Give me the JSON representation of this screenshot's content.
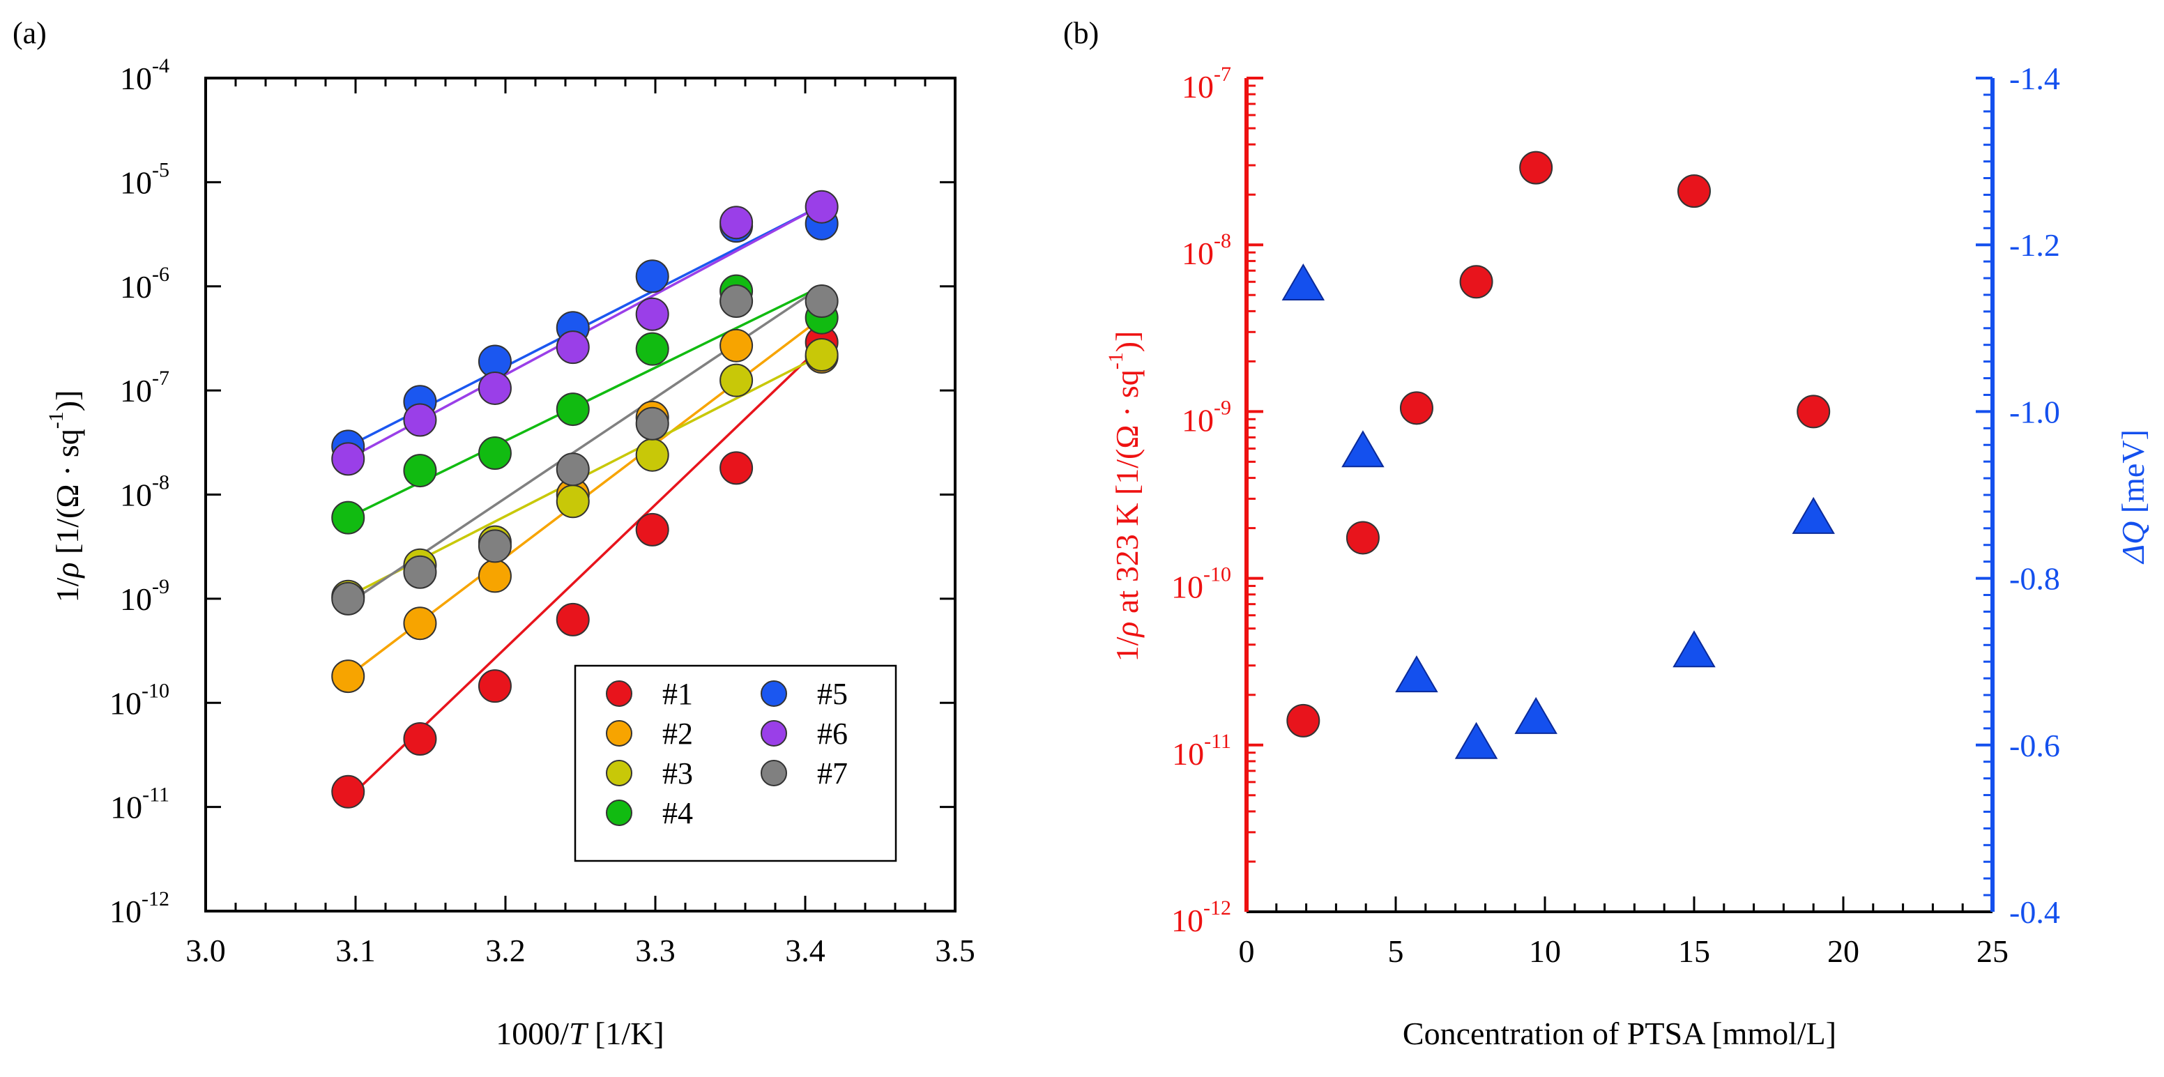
{
  "chart_data": [
    {
      "type": "scatter",
      "panel_label": "(a)",
      "title": "",
      "xlabel": "1000/T [1/K]",
      "xlabel_prefix": "1000/",
      "xlabel_var": "T",
      "xlabel_suffix": " [1/K]",
      "ylabel": "1/ρ [1/(Ω · sq^-1)]",
      "ylabel_parts": {
        "prefix": "1/",
        "var": "ρ",
        "unit": " [1/(Ω · sq",
        "exp": "-1",
        "close": ")]"
      },
      "xlim": [
        3.0,
        3.5
      ],
      "ylim_log10": [
        -12,
        -4
      ],
      "yscale": "log",
      "x_ticks": [
        "3.0",
        "3.1",
        "3.2",
        "3.3",
        "3.4",
        "3.5"
      ],
      "y_tick_exponents": [
        "-12",
        "-11",
        "-10",
        "-9",
        "-8",
        "-7",
        "-6",
        "-5",
        "-4"
      ],
      "y_tick_base": "10",
      "legend_position": "bottom-right",
      "x": [
        3.095,
        3.143,
        3.193,
        3.245,
        3.298,
        3.354,
        3.411
      ],
      "series": [
        {
          "name": "#1",
          "color": "#e8141c",
          "values": [
            1.4e-11,
            4.5e-11,
            1.45e-10,
            6.3e-10,
            4.6e-09,
            1.8e-08,
            2.9e-07
          ],
          "fit": [
            1.2e-11,
            2.7e-07
          ]
        },
        {
          "name": "#2",
          "color": "#f7a400",
          "values": [
            1.8e-10,
            5.8e-10,
            1.65e-09,
            1e-08,
            5.5e-08,
            2.7e-07,
            2.1e-07
          ],
          "fit": [
            1.8e-10,
            5e-07
          ]
        },
        {
          "name": "#3",
          "color": "#c8c808",
          "values": [
            1.05e-09,
            2.1e-09,
            3.5e-09,
            8.6e-09,
            2.4e-08,
            1.25e-07,
            2.2e-07
          ],
          "fit": [
            1.05e-09,
            2.2e-07
          ]
        },
        {
          "name": "#4",
          "color": "#11bb11",
          "values": [
            6e-09,
            1.7e-08,
            2.5e-08,
            6.6e-08,
            2.5e-07,
            9e-07,
            5e-07
          ],
          "fit": [
            6e-09,
            1e-06
          ]
        },
        {
          "name": "#5",
          "color": "#1b57f0",
          "values": [
            2.9e-08,
            7.8e-08,
            1.9e-07,
            4e-07,
            1.25e-06,
            3.8e-06,
            4e-06
          ],
          "fit": [
            2.9e-08,
            6e-06
          ]
        },
        {
          "name": "#6",
          "color": "#9a3fe8",
          "values": [
            2.2e-08,
            5.2e-08,
            1.05e-07,
            2.6e-07,
            5.4e-07,
            4.1e-06,
            5.8e-06
          ],
          "fit": [
            2.2e-08,
            6e-06
          ]
        },
        {
          "name": "#7",
          "color": "#808080",
          "values": [
            1e-09,
            1.8e-09,
            3.2e-09,
            1.75e-08,
            4.8e-08,
            7.2e-07,
            7.2e-07
          ],
          "fit": [
            9e-10,
            1e-06
          ]
        }
      ]
    },
    {
      "type": "scatter",
      "panel_label": "(b)",
      "title": "",
      "xlabel": "Concentration of PTSA [mmol/L]",
      "xlim": [
        0,
        25
      ],
      "x_ticks": [
        "0",
        "5",
        "10",
        "15",
        "20",
        "25"
      ],
      "left_axis": {
        "label": "1/ρ at 323 K [1/(Ω · sq^-1)]",
        "label_parts": {
          "prefix": "1/",
          "var": "ρ",
          "unit": " at 323 K [1/(Ω · sq",
          "exp": "-1",
          "close": ")]"
        },
        "color": "#ee1111",
        "scale": "log",
        "ylim_log10": [
          -12,
          -7
        ],
        "tick_base": "10",
        "tick_exponents": [
          "-12",
          "-11",
          "-10",
          "-9",
          "-8",
          "-7"
        ]
      },
      "right_axis": {
        "label": "ΔQ [meV]",
        "label_var": "ΔQ",
        "label_unit": " [meV]",
        "color": "#1450ee",
        "scale": "linear",
        "ylim": [
          -0.4,
          -1.4
        ],
        "tick_labels": [
          "-0.4",
          "-0.6",
          "-0.8",
          "-1.0",
          "-1.2",
          "-1.4"
        ],
        "tick_values": [
          -0.4,
          -0.6,
          -0.8,
          -1.0,
          -1.2,
          -1.4
        ]
      },
      "series": [
        {
          "name": "1/ρ at 323 K",
          "axis": "left",
          "marker": "circle",
          "color": "#e8141c",
          "x": [
            1.9,
            3.9,
            5.7,
            7.7,
            9.7,
            15.0,
            19.0
          ],
          "values": [
            1.4e-11,
            1.75e-10,
            1.05e-09,
            6e-09,
            2.9e-08,
            2.1e-08,
            1e-09
          ]
        },
        {
          "name": "ΔQ",
          "axis": "right",
          "marker": "triangle",
          "color": "#1450ee",
          "x": [
            1.9,
            3.9,
            5.7,
            7.7,
            9.7,
            15.0,
            19.0
          ],
          "values": [
            -1.15,
            -0.95,
            -0.68,
            -0.6,
            -0.63,
            -0.71,
            -0.87
          ]
        }
      ]
    }
  ]
}
